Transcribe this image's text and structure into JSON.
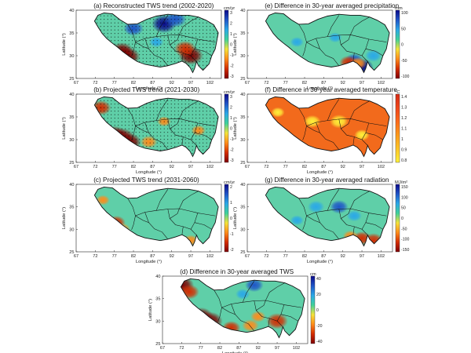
{
  "panels": [
    {
      "id": "a",
      "title": "(a) Reconstructed TWS trend (2002-2020)",
      "cbar_unit": "cm/yr",
      "cbar_ticks": [
        "3",
        "2",
        "1",
        "0",
        "-1",
        "-2",
        "-3"
      ],
      "scheme": "diverging",
      "stippled": true,
      "blobs": [
        {
          "lon": 79,
          "lat": 31,
          "v": -0.9
        },
        {
          "lon": 80.5,
          "lat": 29.8,
          "v": -1.0
        },
        {
          "lon": 97,
          "lat": 30,
          "v": -1.0
        },
        {
          "lon": 95.5,
          "lat": 31.5,
          "v": -0.8
        },
        {
          "lon": 82,
          "lat": 36,
          "v": 0.7
        },
        {
          "lon": 90,
          "lat": 37,
          "v": 1.0
        },
        {
          "lon": 93,
          "lat": 38,
          "v": 0.8
        },
        {
          "lon": 88,
          "lat": 33,
          "v": 0.35
        }
      ]
    },
    {
      "id": "b",
      "title": "(b) Projected TWS trend (2021-2030)",
      "cbar_unit": "cm/yr",
      "cbar_ticks": [
        "3",
        "2",
        "1",
        "0",
        "-1",
        "-2",
        "-3"
      ],
      "scheme": "diverging",
      "stippled": true,
      "blobs": [
        {
          "lon": 77,
          "lat": 31,
          "v": -1.0
        },
        {
          "lon": 79,
          "lat": 30.5,
          "v": -1.0
        },
        {
          "lon": 81,
          "lat": 29.5,
          "v": -0.9
        },
        {
          "lon": 73.5,
          "lat": 37,
          "v": -0.7
        },
        {
          "lon": 86,
          "lat": 29.5,
          "v": -0.5
        },
        {
          "lon": 90,
          "lat": 34,
          "v": -0.3
        },
        {
          "lon": 99,
          "lat": 32,
          "v": -0.35
        }
      ]
    },
    {
      "id": "c",
      "title": "(c) Projected TWS trend (2031-2060)",
      "cbar_unit": "cm/yr",
      "cbar_ticks": [
        "2",
        "1",
        "0",
        "-1",
        "-2"
      ],
      "scheme": "diverging",
      "stippled": false,
      "blobs": [
        {
          "lon": 77.5,
          "lat": 31.5,
          "v": -0.6
        },
        {
          "lon": 79,
          "lat": 30,
          "v": -0.5
        },
        {
          "lon": 74,
          "lat": 36.5,
          "v": -0.3
        },
        {
          "lon": 97,
          "lat": 27.5,
          "v": -0.4
        }
      ]
    },
    {
      "id": "d",
      "title": "(d) Difference in 30-year averaged TWS",
      "cbar_unit": "cm",
      "cbar_ticks": [
        "40",
        "20",
        "0",
        "-20",
        "-40"
      ],
      "scheme": "diverging",
      "stippled": false,
      "blobs": [
        {
          "lon": 77,
          "lat": 31,
          "v": -1.0
        },
        {
          "lon": 79.5,
          "lat": 30,
          "v": -1.0
        },
        {
          "lon": 72,
          "lat": 38,
          "v": -1.0
        },
        {
          "lon": 74,
          "lat": 36.5,
          "v": -0.7
        },
        {
          "lon": 85,
          "lat": 28.5,
          "v": -0.6
        },
        {
          "lon": 90,
          "lat": 29,
          "v": -0.5
        },
        {
          "lon": 97,
          "lat": 30,
          "v": -0.8
        },
        {
          "lon": 92,
          "lat": 31,
          "v": -0.4
        },
        {
          "lon": 91,
          "lat": 38,
          "v": 0.6
        },
        {
          "lon": 88,
          "lat": 36,
          "v": 0.35
        }
      ]
    },
    {
      "id": "e",
      "title": "(e) Difference in 30-year averaged precipitation",
      "cbar_unit": "mm",
      "cbar_ticks": [
        "100",
        "50",
        "0",
        "-50",
        "-100"
      ],
      "scheme": "diverging",
      "stippled": false,
      "blobs": [
        {
          "lon": 97,
          "lat": 27.5,
          "v": 0.9
        },
        {
          "lon": 95,
          "lat": 29,
          "v": 0.6
        },
        {
          "lon": 100,
          "lat": 30,
          "v": 0.5
        },
        {
          "lon": 80,
          "lat": 33,
          "v": 0.3
        },
        {
          "lon": 90,
          "lat": 34,
          "v": 0.3
        },
        {
          "lon": 93.5,
          "lat": 28.5,
          "v": -0.6
        },
        {
          "lon": 96,
          "lat": 28.3,
          "v": -0.5
        }
      ]
    },
    {
      "id": "f",
      "title": "(f) Difference in 30-year averaged temperature",
      "cbar_unit": "°C",
      "cbar_ticks": [
        "1.4",
        "1.3",
        "1.2",
        "1.1",
        "1",
        "0.9",
        "0.8"
      ],
      "scheme": "warm",
      "stippled": false,
      "blobs": [
        {
          "lon": 84,
          "lat": 34,
          "v": -0.5
        },
        {
          "lon": 91,
          "lat": 34,
          "v": -0.6
        },
        {
          "lon": 97,
          "lat": 31,
          "v": -0.4
        },
        {
          "lon": 75,
          "lat": 36,
          "v": -0.3
        }
      ]
    },
    {
      "id": "g",
      "title": "(g) Difference in 30-year averaged radiation",
      "cbar_unit": "MJ/m²",
      "cbar_ticks": [
        "150",
        "100",
        "50",
        "0",
        "-50",
        "-100",
        "-150"
      ],
      "scheme": "diverging",
      "stippled": false,
      "blobs": [
        {
          "lon": 85,
          "lat": 35,
          "v": 0.5
        },
        {
          "lon": 91,
          "lat": 35,
          "v": 0.6
        },
        {
          "lon": 95,
          "lat": 33,
          "v": 0.4
        },
        {
          "lon": 80,
          "lat": 32,
          "v": 0.3
        },
        {
          "lon": 97,
          "lat": 28,
          "v": -0.6
        },
        {
          "lon": 100,
          "lat": 27.5,
          "v": -0.7
        },
        {
          "lon": 94,
          "lat": 28.5,
          "v": -0.4
        }
      ]
    }
  ],
  "axes": {
    "xlabel": "Longitude (°)",
    "ylabel": "Latitude (°)",
    "xticks": [
      "67",
      "72",
      "77",
      "82",
      "87",
      "92",
      "97",
      "102"
    ],
    "yticks": [
      "40",
      "35",
      "30",
      "25"
    ]
  },
  "colors": {
    "diverging": [
      "#7f0000",
      "#d42c00",
      "#ff8c1a",
      "#f5e33a",
      "#3fd29a",
      "#2aa8e8",
      "#1f55c8",
      "#0a0a8a"
    ],
    "warm": [
      "#fff23a",
      "#ffc626",
      "#ff9a1a",
      "#ff6a1a",
      "#f0461a",
      "#d62b14"
    ],
    "base": "#5fcfa8",
    "warm_base": "#f26a1c"
  }
}
